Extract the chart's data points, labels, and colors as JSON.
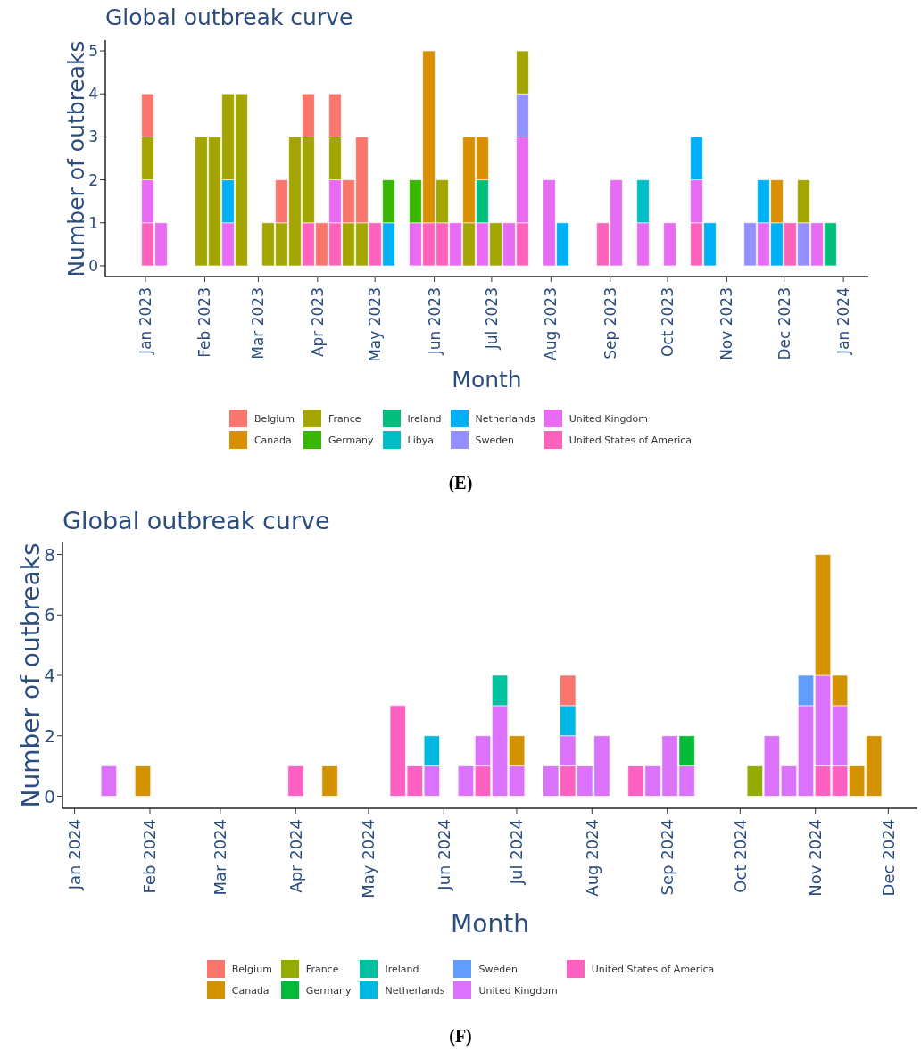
{
  "chart_data": [
    {
      "type": "bar",
      "title": "Global outbreak curve",
      "xlabel": "Month",
      "ylabel": "Number of outbreaks",
      "annotations": [
        "(E)"
      ],
      "stacked": true,
      "legend": "bottom",
      "x": [
        "2023-01-02",
        "2023-01-09",
        "2023-01-30",
        "2023-02-06",
        "2023-02-13",
        "2023-02-20",
        "2023-03-06",
        "2023-03-13",
        "2023-03-20",
        "2023-03-27",
        "2023-04-03",
        "2023-04-10",
        "2023-04-17",
        "2023-04-24",
        "2023-05-01",
        "2023-05-08",
        "2023-05-22",
        "2023-05-29",
        "2023-06-05",
        "2023-06-12",
        "2023-06-19",
        "2023-06-26",
        "2023-07-03",
        "2023-07-10",
        "2023-07-17",
        "2023-07-31",
        "2023-08-07",
        "2023-08-28",
        "2023-09-04",
        "2023-09-18",
        "2023-10-02",
        "2023-10-16",
        "2023-10-23",
        "2023-11-13",
        "2023-11-20",
        "2023-11-27",
        "2023-12-04",
        "2023-12-11",
        "2023-12-18",
        "2023-12-25"
      ],
      "xlim": [
        "2022-12-11",
        "2024-01-14"
      ],
      "xticks": [
        {
          "value": "2023-01-01",
          "label": "Jan 2023"
        },
        {
          "value": "2023-02-01",
          "label": "Feb 2023"
        },
        {
          "value": "2023-03-01",
          "label": "Mar 2023"
        },
        {
          "value": "2023-04-01",
          "label": "Apr 2023"
        },
        {
          "value": "2023-05-01",
          "label": "May 2023"
        },
        {
          "value": "2023-06-01",
          "label": "Jun 2023"
        },
        {
          "value": "2023-07-01",
          "label": "Jul 2023"
        },
        {
          "value": "2023-08-01",
          "label": "Aug 2023"
        },
        {
          "value": "2023-09-01",
          "label": "Sep 2023"
        },
        {
          "value": "2023-10-01",
          "label": "Oct 2023"
        },
        {
          "value": "2023-11-01",
          "label": "Nov 2023"
        },
        {
          "value": "2023-12-01",
          "label": "Dec 2023"
        },
        {
          "value": "2024-01-01",
          "label": "Jan 2024"
        }
      ],
      "ylim": [
        -0.25,
        5.25
      ],
      "yticks": [
        0,
        1,
        2,
        3,
        4,
        5
      ],
      "series": [
        {
          "name": "United States of America",
          "color": "#ff62bc",
          "values": [
            1,
            null,
            null,
            null,
            null,
            null,
            null,
            null,
            null,
            1,
            null,
            1,
            null,
            null,
            1,
            null,
            null,
            1,
            1,
            null,
            null,
            null,
            null,
            null,
            1,
            null,
            null,
            1,
            null,
            null,
            null,
            1,
            null,
            null,
            null,
            null,
            1,
            null,
            null,
            null
          ]
        },
        {
          "name": "United Kingdom",
          "color": "#e76bf3",
          "values": [
            1,
            1,
            null,
            null,
            1,
            null,
            null,
            null,
            null,
            null,
            null,
            1,
            null,
            null,
            null,
            null,
            1,
            null,
            null,
            1,
            null,
            1,
            null,
            1,
            2,
            2,
            null,
            null,
            2,
            1,
            1,
            1,
            null,
            null,
            1,
            null,
            null,
            null,
            1,
            null
          ]
        },
        {
          "name": "Sweden",
          "color": "#9590ff",
          "values": [
            null,
            null,
            null,
            null,
            null,
            null,
            null,
            null,
            null,
            null,
            null,
            null,
            null,
            null,
            null,
            null,
            null,
            null,
            null,
            null,
            null,
            null,
            null,
            null,
            1,
            null,
            null,
            null,
            null,
            null,
            null,
            null,
            null,
            1,
            null,
            null,
            null,
            1,
            null,
            null
          ]
        },
        {
          "name": "Netherlands",
          "color": "#00b0f6",
          "values": [
            null,
            null,
            null,
            null,
            1,
            null,
            null,
            null,
            null,
            null,
            null,
            null,
            null,
            null,
            null,
            1,
            null,
            null,
            null,
            null,
            null,
            null,
            null,
            null,
            null,
            null,
            1,
            null,
            null,
            null,
            null,
            1,
            1,
            null,
            1,
            1,
            null,
            null,
            null,
            null
          ]
        },
        {
          "name": "Libya",
          "color": "#00bfc4",
          "values": [
            null,
            null,
            null,
            null,
            null,
            null,
            null,
            null,
            null,
            null,
            null,
            null,
            null,
            null,
            null,
            null,
            null,
            null,
            null,
            null,
            null,
            null,
            null,
            null,
            null,
            null,
            null,
            null,
            null,
            1,
            null,
            null,
            null,
            null,
            null,
            null,
            null,
            null,
            null,
            null
          ]
        },
        {
          "name": "Ireland",
          "color": "#00bf7d",
          "values": [
            null,
            null,
            null,
            null,
            null,
            null,
            null,
            null,
            null,
            null,
            null,
            null,
            null,
            null,
            null,
            null,
            null,
            null,
            null,
            null,
            null,
            1,
            null,
            null,
            null,
            null,
            null,
            null,
            null,
            null,
            null,
            null,
            null,
            null,
            null,
            null,
            null,
            null,
            null,
            1
          ]
        },
        {
          "name": "Germany",
          "color": "#39b600",
          "values": [
            null,
            null,
            null,
            null,
            null,
            null,
            null,
            null,
            null,
            null,
            null,
            null,
            null,
            null,
            null,
            1,
            1,
            null,
            null,
            null,
            null,
            null,
            null,
            null,
            null,
            null,
            null,
            null,
            null,
            null,
            null,
            null,
            null,
            null,
            null,
            null,
            null,
            null,
            null,
            null
          ]
        },
        {
          "name": "France",
          "color": "#a3a500",
          "values": [
            1,
            null,
            3,
            3,
            2,
            4,
            1,
            1,
            3,
            2,
            null,
            1,
            1,
            1,
            null,
            null,
            null,
            null,
            1,
            null,
            1,
            null,
            1,
            null,
            1,
            null,
            null,
            null,
            null,
            null,
            null,
            null,
            null,
            null,
            null,
            null,
            null,
            1,
            null,
            null
          ]
        },
        {
          "name": "Canada",
          "color": "#d89000",
          "values": [
            null,
            null,
            null,
            null,
            null,
            null,
            null,
            null,
            null,
            null,
            null,
            null,
            null,
            null,
            null,
            null,
            null,
            4,
            null,
            null,
            2,
            1,
            null,
            null,
            null,
            null,
            null,
            null,
            null,
            null,
            null,
            null,
            null,
            null,
            null,
            1,
            null,
            null,
            null,
            null
          ]
        },
        {
          "name": "Belgium",
          "color": "#f8766d",
          "values": [
            1,
            null,
            null,
            null,
            null,
            null,
            null,
            1,
            null,
            1,
            1,
            1,
            1,
            2,
            null,
            null,
            null,
            null,
            null,
            null,
            null,
            null,
            null,
            null,
            null,
            null,
            null,
            null,
            null,
            null,
            null,
            null,
            null,
            null,
            null,
            null,
            null,
            null,
            null,
            null
          ]
        }
      ]
    },
    {
      "type": "bar",
      "title": "Global outbreak curve",
      "xlabel": "Month",
      "ylabel": "Number of outbreaks",
      "annotations": [
        "(F)"
      ],
      "stacked": true,
      "legend": "bottom",
      "x": [
        "2024-01-15",
        "2024-01-29",
        "2024-04-01",
        "2024-04-15",
        "2024-05-13",
        "2024-05-20",
        "2024-05-27",
        "2024-06-10",
        "2024-06-17",
        "2024-06-24",
        "2024-07-01",
        "2024-07-15",
        "2024-07-22",
        "2024-07-29",
        "2024-08-05",
        "2024-08-19",
        "2024-08-26",
        "2024-09-02",
        "2024-09-09",
        "2024-10-07",
        "2024-10-14",
        "2024-10-21",
        "2024-10-28",
        "2024-11-04",
        "2024-11-11",
        "2024-11-18",
        "2024-11-25"
      ],
      "xlim": [
        "2023-12-27",
        "2024-12-13"
      ],
      "xticks": [
        {
          "value": "2024-01-01",
          "label": "Jan 2024"
        },
        {
          "value": "2024-02-01",
          "label": "Feb 2024"
        },
        {
          "value": "2024-03-01",
          "label": "Mar 2024"
        },
        {
          "value": "2024-04-01",
          "label": "Apr 2024"
        },
        {
          "value": "2024-05-01",
          "label": "May 2024"
        },
        {
          "value": "2024-06-01",
          "label": "Jun 2024"
        },
        {
          "value": "2024-07-01",
          "label": "Jul 2024"
        },
        {
          "value": "2024-08-01",
          "label": "Aug 2024"
        },
        {
          "value": "2024-09-01",
          "label": "Sep 2024"
        },
        {
          "value": "2024-10-01",
          "label": "Oct 2024"
        },
        {
          "value": "2024-11-01",
          "label": "Nov 2024"
        },
        {
          "value": "2024-12-01",
          "label": "Dec 2024"
        }
      ],
      "ylim": [
        -0.4,
        8.4
      ],
      "yticks": [
        0,
        2,
        4,
        6,
        8
      ],
      "series": [
        {
          "name": "United States of America",
          "color": "#ff61c3",
          "values": [
            null,
            null,
            1,
            null,
            3,
            1,
            null,
            null,
            1,
            null,
            null,
            null,
            1,
            null,
            null,
            1,
            null,
            null,
            null,
            null,
            null,
            null,
            null,
            1,
            1,
            null,
            null
          ]
        },
        {
          "name": "United Kingdom",
          "color": "#db72fb",
          "values": [
            1,
            null,
            null,
            null,
            null,
            null,
            1,
            1,
            1,
            3,
            1,
            1,
            1,
            1,
            2,
            null,
            1,
            2,
            1,
            null,
            2,
            1,
            3,
            3,
            2,
            null,
            null
          ]
        },
        {
          "name": "Sweden",
          "color": "#619cff",
          "values": [
            null,
            null,
            null,
            null,
            null,
            null,
            null,
            null,
            null,
            null,
            null,
            null,
            null,
            null,
            null,
            null,
            null,
            null,
            null,
            null,
            null,
            null,
            1,
            null,
            null,
            null,
            null
          ]
        },
        {
          "name": "Netherlands",
          "color": "#00b9e3",
          "values": [
            null,
            null,
            null,
            null,
            null,
            null,
            1,
            null,
            null,
            null,
            null,
            null,
            1,
            null,
            null,
            null,
            null,
            null,
            null,
            null,
            null,
            null,
            null,
            null,
            null,
            null,
            null
          ]
        },
        {
          "name": "Ireland",
          "color": "#00c19f",
          "values": [
            null,
            null,
            null,
            null,
            null,
            null,
            null,
            null,
            null,
            1,
            null,
            null,
            null,
            null,
            null,
            null,
            null,
            null,
            null,
            null,
            null,
            null,
            null,
            null,
            null,
            null,
            null
          ]
        },
        {
          "name": "Germany",
          "color": "#00ba38",
          "values": [
            null,
            null,
            null,
            null,
            null,
            null,
            null,
            null,
            null,
            null,
            null,
            null,
            null,
            null,
            null,
            null,
            null,
            null,
            1,
            null,
            null,
            null,
            null,
            null,
            null,
            null,
            null
          ]
        },
        {
          "name": "France",
          "color": "#93aa00",
          "values": [
            null,
            null,
            null,
            null,
            null,
            null,
            null,
            null,
            null,
            null,
            null,
            null,
            null,
            null,
            null,
            null,
            null,
            null,
            null,
            1,
            null,
            null,
            null,
            null,
            null,
            null,
            null
          ]
        },
        {
          "name": "Canada",
          "color": "#d39200",
          "values": [
            null,
            1,
            null,
            1,
            null,
            null,
            null,
            null,
            null,
            null,
            1,
            null,
            null,
            null,
            null,
            null,
            null,
            null,
            null,
            null,
            null,
            null,
            null,
            4,
            1,
            1,
            2
          ]
        },
        {
          "name": "Belgium",
          "color": "#f8766d",
          "values": [
            null,
            null,
            null,
            null,
            null,
            null,
            null,
            null,
            null,
            null,
            null,
            null,
            1,
            null,
            null,
            null,
            null,
            null,
            null,
            null,
            null,
            null,
            null,
            null,
            null,
            null,
            null
          ]
        }
      ]
    }
  ]
}
